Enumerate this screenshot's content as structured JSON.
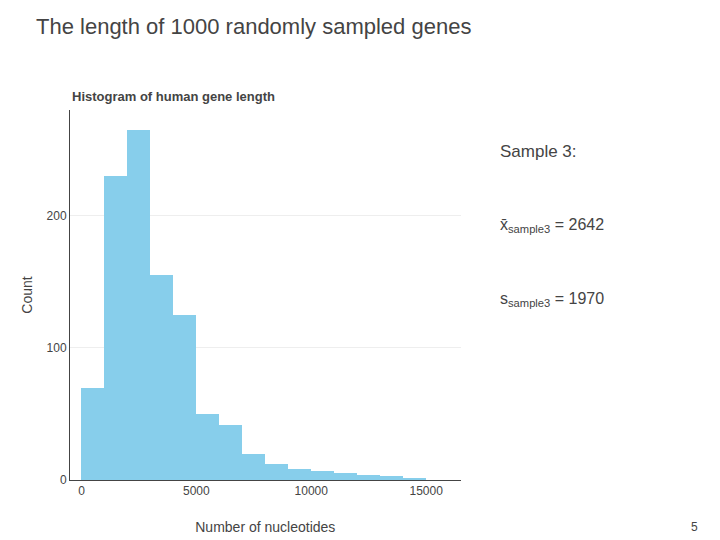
{
  "chart_data": {
    "type": "histogram",
    "title": "The length of 1000 randomly sampled genes",
    "subtitle": "Histogram of human gene length",
    "xlabel": "Number of nucleotides",
    "ylabel": "Count",
    "bins": [
      0,
      1000,
      2000,
      3000,
      4000,
      5000,
      6000,
      7000,
      8000,
      9000,
      10000,
      11000,
      12000,
      13000,
      14000,
      15000,
      16000
    ],
    "values": [
      70,
      230,
      265,
      155,
      125,
      50,
      42,
      20,
      12,
      8,
      7,
      5,
      4,
      3,
      1,
      0
    ],
    "color": "#87CEEB",
    "xlim": [
      -500,
      16500
    ],
    "ylim": [
      0,
      280
    ],
    "xticks": [
      0,
      5000,
      10000,
      15000
    ],
    "yticks": [
      0,
      100,
      200
    ],
    "grid": "y",
    "annotations": [
      {
        "text": "Sample 3:"
      },
      {
        "text": "x̄",
        "subscript": "sample3",
        "value": 2642
      },
      {
        "text": "s",
        "subscript": "sample3",
        "value": 1970
      }
    ],
    "page_number": "5"
  }
}
